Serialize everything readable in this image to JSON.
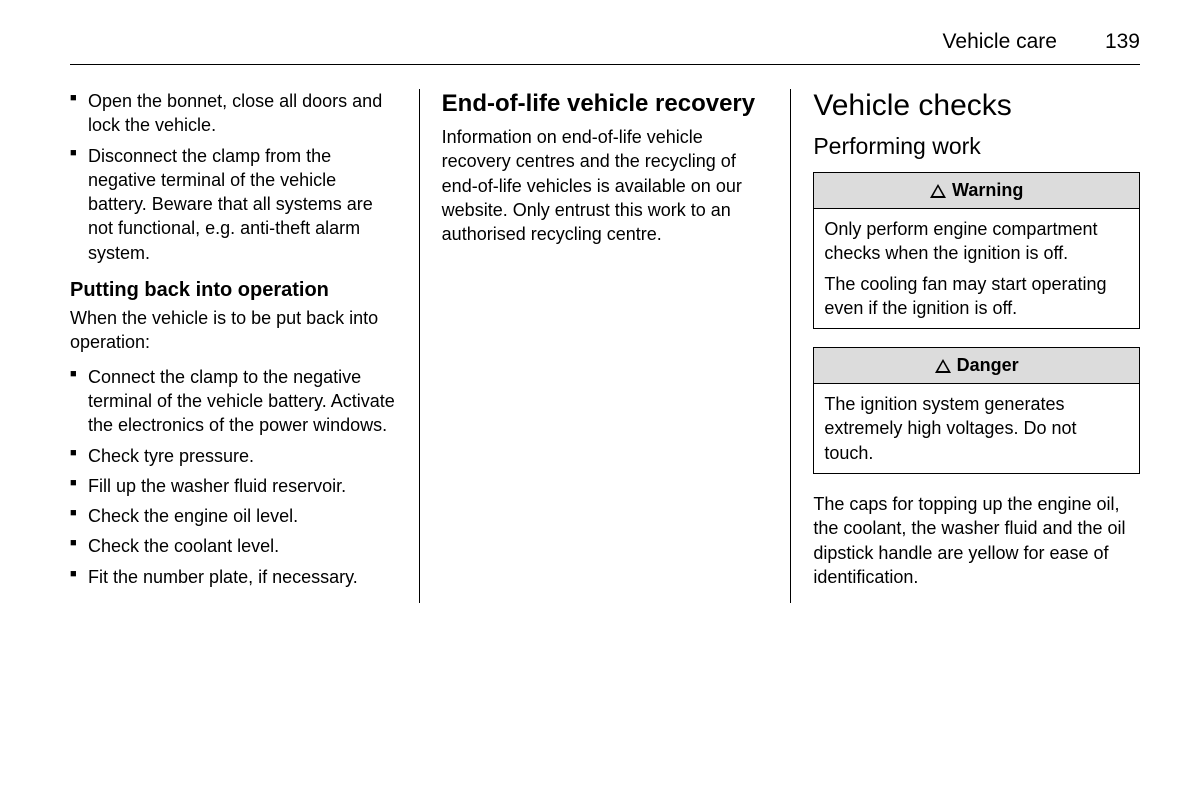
{
  "header": {
    "section": "Vehicle care",
    "page": "139"
  },
  "col1": {
    "list1": [
      "Open the bonnet, close all doors and lock the vehicle.",
      "Disconnect the clamp from the negative terminal of the vehicle battery. Beware that all systems are not functional, e.g. anti-theft alarm system."
    ],
    "sub_heading": "Putting back into operation",
    "intro": "When the vehicle is to be put back into operation:",
    "list2": [
      "Connect the clamp to the negative terminal of the vehicle battery. Activate the electronics of the power windows.",
      "Check tyre pressure.",
      "Fill up the washer fluid reservoir.",
      "Check the engine oil level.",
      "Check the coolant level.",
      "Fit the number plate, if necessary."
    ]
  },
  "col2": {
    "heading": "End-of-life vehicle recovery",
    "body": "Information on end-of-life vehicle recovery centres and the recycling of end-of-life vehicles is available on our website. Only entrust this work to an authorised recycling centre."
  },
  "col3": {
    "h1": "Vehicle checks",
    "h3": "Performing work",
    "warning": {
      "title": "Warning",
      "p1": "Only perform engine compartment checks when the ignition is off.",
      "p2": "The cooling fan may start operating even if the ignition is off."
    },
    "danger": {
      "title": "Danger",
      "p1": "The ignition system generates extremely high voltages. Do not touch."
    },
    "footer": "The caps for topping up the engine oil, the coolant, the washer fluid and the oil dipstick handle are yellow for ease of identification."
  }
}
